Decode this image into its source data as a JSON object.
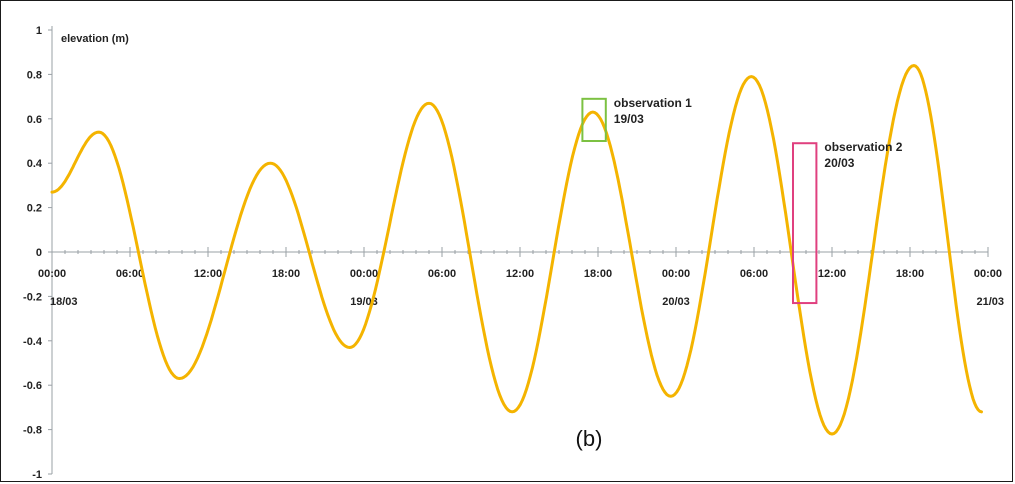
{
  "chart_data": {
    "type": "line",
    "title": "",
    "ylabel": "elevation (m)",
    "xlabel": "",
    "ylim": [
      -1,
      1
    ],
    "y_ticks": [
      1,
      0.8,
      0.6,
      0.4,
      0.2,
      0,
      -0.2,
      -0.4,
      -0.6,
      -0.8,
      -1
    ],
    "y_tick_labels": [
      "1",
      "0.8",
      "0.6",
      "0.4",
      "0.2",
      "0",
      "-0.2",
      "-0.4",
      "-0.6",
      "-0.8",
      "-1"
    ],
    "x_unit": "hours",
    "xlim": [
      0,
      72
    ],
    "x_ticks": [
      0,
      6,
      12,
      18,
      24,
      30,
      36,
      42,
      48,
      54,
      60,
      66,
      72
    ],
    "x_tick_labels": [
      "00:00",
      "06:00",
      "12:00",
      "18:00",
      "00:00",
      "06:00",
      "12:00",
      "18:00",
      "00:00",
      "06:00",
      "12:00",
      "18:00",
      "00:00"
    ],
    "date_labels": [
      {
        "at": 0,
        "text": "18/03"
      },
      {
        "at": 24,
        "text": "19/03"
      },
      {
        "at": 48,
        "text": "20/03"
      },
      {
        "at": 72,
        "text": "21/03"
      }
    ],
    "series": [
      {
        "color": "#f4b400",
        "points": [
          [
            0,
            0.27
          ],
          [
            3.6,
            0.54
          ],
          [
            9.8,
            -0.57
          ],
          [
            16.8,
            0.4
          ],
          [
            22.9,
            -0.43
          ],
          [
            29.0,
            0.67
          ],
          [
            35.4,
            -0.72
          ],
          [
            41.6,
            0.63
          ],
          [
            47.6,
            -0.65
          ],
          [
            53.8,
            0.79
          ],
          [
            60.0,
            -0.82
          ],
          [
            66.3,
            0.84
          ],
          [
            71.5,
            -0.72
          ]
        ]
      }
    ],
    "annotations": [
      {
        "text_line1": "observation 1",
        "text_line2": "19/03",
        "box_color": "#7cc142",
        "x_from": 40.8,
        "x_to": 42.6,
        "y_from": 0.5,
        "y_to": 0.69
      },
      {
        "text_line1": "observation 2",
        "text_line2": "20/03",
        "box_color": "#e0407f",
        "x_from": 57.0,
        "x_to": 58.8,
        "y_from": -0.23,
        "y_to": 0.49
      }
    ],
    "panel_label": "(b)",
    "grid": false
  }
}
